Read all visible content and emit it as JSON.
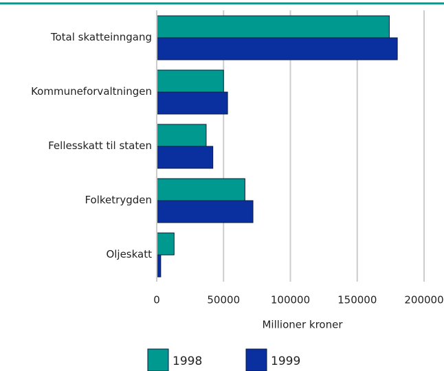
{
  "chart_data": {
    "type": "hbar",
    "categories": [
      "Total skatteinngang",
      "Kommuneforvaltningen",
      "Fellesskatt til staten",
      "Folketrygden",
      "Oljeskatt"
    ],
    "series": [
      {
        "name": "1998",
        "color": "#00998f",
        "values": [
          174000,
          50000,
          37000,
          66000,
          13000
        ]
      },
      {
        "name": "1999",
        "color": "#0a2f9e",
        "values": [
          180000,
          53000,
          42000,
          72000,
          3000
        ]
      }
    ],
    "xlabel": "Millioner kroner",
    "xlim": [
      0,
      200000
    ],
    "xticks": [
      0,
      50000,
      100000,
      150000,
      200000
    ],
    "grid": true
  }
}
